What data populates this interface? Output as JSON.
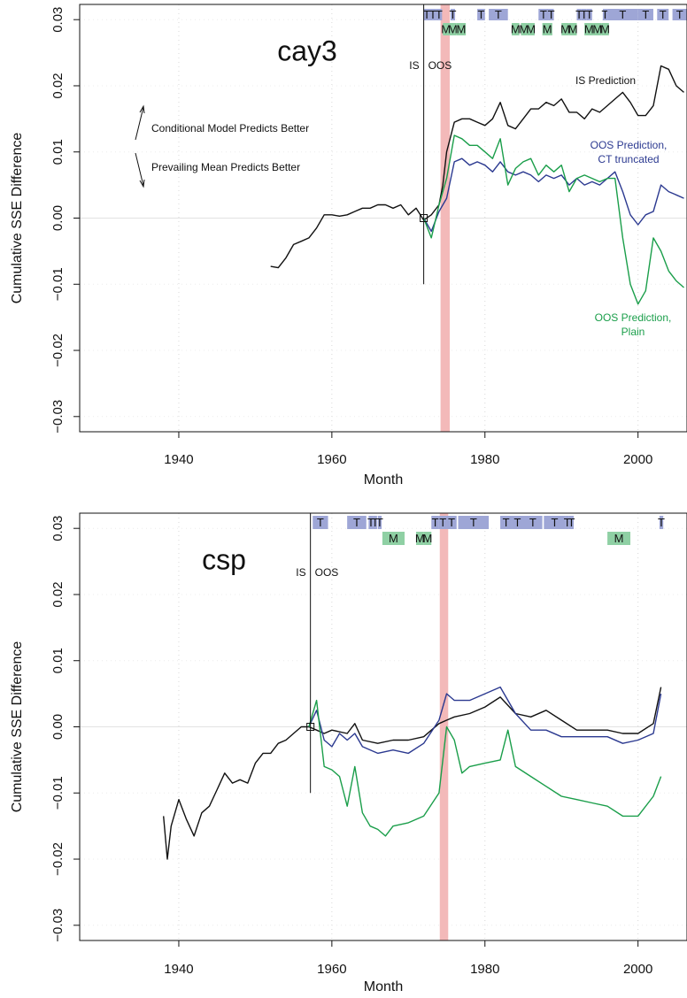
{
  "chart_data": [
    {
      "type": "line",
      "title": "cay3",
      "x_label": "Month",
      "y_label": "Cumulative SSE Difference",
      "xlim": [
        1927.05,
        2006.4
      ],
      "ylim": [
        -0.0323,
        0.0323
      ],
      "xticks": [
        1940,
        1960,
        1980,
        2000
      ],
      "yticks": [
        {
          "value": -0.03,
          "label": "−0.03"
        },
        {
          "value": -0.02,
          "label": "−0.02"
        },
        {
          "value": -0.01,
          "label": "−0.01"
        },
        {
          "value": 0,
          "label": "0.00"
        },
        0.01,
        0.02,
        0.03
      ],
      "grid": true,
      "shade": {
        "start": 1974.2,
        "end": 1975.4,
        "color": "#f3b9b9"
      },
      "split": {
        "x": 1972,
        "y_end": -0.01,
        "left_label": "IS",
        "right_label": "OOS"
      },
      "period_rows": [
        {
          "color": "#9ea6d6",
          "periods": [
            {
              "start": 1972,
              "end": 1972.8,
              "label": "T"
            },
            {
              "start": 1972.8,
              "end": 1973.6,
              "label": "T"
            },
            {
              "start": 1973.6,
              "end": 1974.4,
              "label": "T"
            },
            {
              "start": 1975.5,
              "end": 1976.1,
              "label": "T"
            },
            {
              "start": 1979,
              "end": 1980,
              "label": "T"
            },
            {
              "start": 1980.5,
              "end": 1983,
              "label": "T"
            },
            {
              "start": 1987,
              "end": 1988.3,
              "label": "T"
            },
            {
              "start": 1988.3,
              "end": 1989,
              "label": "T"
            },
            {
              "start": 1992,
              "end": 1992.6,
              "label": "T"
            },
            {
              "start": 1992.6,
              "end": 1993.3,
              "label": "T"
            },
            {
              "start": 1993.3,
              "end": 1994,
              "label": "T"
            },
            {
              "start": 1995.4,
              "end": 1996,
              "label": "T"
            },
            {
              "start": 1996,
              "end": 2000,
              "label": "T"
            },
            {
              "start": 2000,
              "end": 2002,
              "label": "T"
            },
            {
              "start": 2002.5,
              "end": 2004,
              "label": "T"
            },
            {
              "start": 2004.5,
              "end": 2006.4,
              "label": "T"
            }
          ]
        },
        {
          "color": "#8fd0a4",
          "periods": [
            {
              "start": 1974.5,
              "end": 1975.3,
              "label": "M"
            },
            {
              "start": 1975.3,
              "end": 1976.3,
              "label": "M"
            },
            {
              "start": 1976.3,
              "end": 1977.5,
              "label": "M"
            },
            {
              "start": 1983.5,
              "end": 1984.5,
              "label": "M"
            },
            {
              "start": 1984.7,
              "end": 1985.5,
              "label": "M"
            },
            {
              "start": 1985.5,
              "end": 1986.5,
              "label": "M"
            },
            {
              "start": 1987.5,
              "end": 1988.8,
              "label": "M"
            },
            {
              "start": 1990,
              "end": 1991,
              "label": "M"
            },
            {
              "start": 1991,
              "end": 1992,
              "label": "M"
            },
            {
              "start": 1993,
              "end": 1994.2,
              "label": "M"
            },
            {
              "start": 1994.2,
              "end": 1995.2,
              "label": "M"
            },
            {
              "start": 1995.2,
              "end": 1996.2,
              "label": "M"
            }
          ]
        }
      ],
      "annotations": [
        {
          "text": "Conditional Model Predicts Better",
          "color": "#111111"
        },
        {
          "text": "Prevailing Mean Predicts Better",
          "color": "#111111"
        },
        {
          "text": "IS Prediction",
          "color": "#111111"
        },
        {
          "text": "OOS Prediction,",
          "color": "#2b3990"
        },
        {
          "text": "CT truncated",
          "color": "#2b3990"
        },
        {
          "text": "OOS Prediction,",
          "color": "#1a9e4a"
        },
        {
          "text": "Plain",
          "color": "#1a9e4a"
        }
      ],
      "series": [
        {
          "color": "#111111",
          "x": [
            1952,
            1953,
            1954,
            1955,
            1956,
            1957,
            1958,
            1959,
            1960,
            1961,
            1962,
            1963,
            1964,
            1965,
            1966,
            1967,
            1968,
            1969,
            1970,
            1971,
            1972,
            1973,
            1974,
            1974.5,
            1975,
            1976,
            1977,
            1978,
            1979,
            1980,
            1981,
            1982,
            1983,
            1984,
            1985,
            1986,
            1987,
            1988,
            1989,
            1990,
            1991,
            1992,
            1993,
            1994,
            1995,
            1996,
            1997,
            1998,
            1999,
            2000,
            2001,
            2002,
            2003,
            2004,
            2005,
            2006
          ],
          "values": [
            -0.0073,
            -0.0075,
            -0.006,
            -0.004,
            -0.0035,
            -0.003,
            -0.0015,
            0.0005,
            0.0005,
            0.0003,
            0.0005,
            0.001,
            0.0015,
            0.0015,
            0.002,
            0.002,
            0.0015,
            0.002,
            0.0005,
            0.0015,
            -0.0003,
            0.0005,
            0.002,
            0.005,
            0.01,
            0.0145,
            0.015,
            0.015,
            0.0145,
            0.014,
            0.015,
            0.0175,
            0.014,
            0.0135,
            0.015,
            0.0165,
            0.0165,
            0.0175,
            0.017,
            0.018,
            0.016,
            0.016,
            0.015,
            0.0165,
            0.016,
            0.017,
            0.018,
            0.019,
            0.0175,
            0.0155,
            0.0155,
            0.017,
            0.023,
            0.0225,
            0.02,
            0.019
          ]
        },
        {
          "color": "#2b3990",
          "x": [
            1972,
            1973,
            1974,
            1975,
            1976,
            1977,
            1978,
            1979,
            1980,
            1981,
            1982,
            1983,
            1984,
            1985,
            1986,
            1987,
            1988,
            1989,
            1990,
            1991,
            1992,
            1993,
            1994,
            1995,
            1996,
            1997,
            1998,
            1999,
            2000,
            2001,
            2002,
            2003,
            2004,
            2005,
            2006
          ],
          "values": [
            0,
            -0.002,
            0.001,
            0.003,
            0.0085,
            0.009,
            0.008,
            0.0085,
            0.008,
            0.007,
            0.0085,
            0.007,
            0.0065,
            0.007,
            0.0065,
            0.0055,
            0.0065,
            0.006,
            0.0065,
            0.005,
            0.006,
            0.005,
            0.0055,
            0.005,
            0.006,
            0.007,
            0.004,
            0.0005,
            -0.001,
            0.0005,
            0.001,
            0.005,
            0.004,
            0.0035,
            0.003
          ]
        },
        {
          "color": "#1a9e4a",
          "x": [
            1972,
            1973,
            1974,
            1975,
            1976,
            1977,
            1978,
            1979,
            1980,
            1981,
            1982,
            1983,
            1984,
            1985,
            1986,
            1987,
            1988,
            1989,
            1990,
            1991,
            1992,
            1993,
            1994,
            1995,
            1996,
            1997,
            1998,
            1999,
            2000,
            2001,
            2002,
            2003,
            2004,
            2005,
            2006
          ],
          "values": [
            0,
            -0.003,
            0.002,
            0.006,
            0.0125,
            0.012,
            0.011,
            0.011,
            0.01,
            0.009,
            0.012,
            0.005,
            0.0075,
            0.0085,
            0.009,
            0.0065,
            0.008,
            0.007,
            0.008,
            0.004,
            0.006,
            0.0065,
            0.006,
            0.0055,
            0.006,
            0.006,
            -0.003,
            -0.01,
            -0.013,
            -0.011,
            -0.003,
            -0.005,
            -0.008,
            -0.0095,
            -0.0105
          ]
        }
      ]
    },
    {
      "type": "line",
      "title": "csp",
      "x_label": "Month",
      "y_label": "Cumulative SSE Difference",
      "xlim": [
        1927.05,
        2006.4
      ],
      "ylim": [
        -0.0323,
        0.0323
      ],
      "xticks": [
        1940,
        1960,
        1980,
        2000
      ],
      "yticks": [
        {
          "value": -0.03,
          "label": "−0.03"
        },
        {
          "value": -0.02,
          "label": "−0.02"
        },
        {
          "value": -0.01,
          "label": "−0.01"
        },
        {
          "value": 0,
          "label": "0.00"
        },
        0.01,
        0.02,
        0.03
      ],
      "grid": true,
      "shade": {
        "start": 1974.1,
        "end": 1975.2,
        "color": "#f3b9b9"
      },
      "split": {
        "x": 1957.2,
        "y_end": -0.01,
        "left_label": "IS",
        "right_label": "OOS"
      },
      "period_rows": [
        {
          "color": "#9ea6d6",
          "periods": [
            {
              "start": 1957.5,
              "end": 1959.5,
              "label": "T"
            },
            {
              "start": 1962,
              "end": 1964.5,
              "label": "T"
            },
            {
              "start": 1964.8,
              "end": 1965.4,
              "label": "T"
            },
            {
              "start": 1965.4,
              "end": 1965.9,
              "label": "T"
            },
            {
              "start": 1966,
              "end": 1966.5,
              "label": "T"
            },
            {
              "start": 1973,
              "end": 1974,
              "label": "T"
            },
            {
              "start": 1974,
              "end": 1975,
              "label": "T"
            },
            {
              "start": 1975,
              "end": 1976.3,
              "label": "T"
            },
            {
              "start": 1976.5,
              "end": 1980.5,
              "label": "T"
            },
            {
              "start": 1982,
              "end": 1983.5,
              "label": "T"
            },
            {
              "start": 1983.5,
              "end": 1985,
              "label": "T"
            },
            {
              "start": 1985,
              "end": 1987.5,
              "label": "T"
            },
            {
              "start": 1987.7,
              "end": 1990.5,
              "label": "T"
            },
            {
              "start": 1990.5,
              "end": 1991,
              "label": "T"
            },
            {
              "start": 1991,
              "end": 1991.6,
              "label": "T"
            },
            {
              "start": 2002.8,
              "end": 2003.3,
              "label": "T"
            }
          ]
        },
        {
          "color": "#8fd0a4",
          "periods": [
            {
              "start": 1966.6,
              "end": 1969.5,
              "label": "M"
            },
            {
              "start": 1971,
              "end": 1972,
              "label": "M"
            },
            {
              "start": 1972,
              "end": 1973,
              "label": "M"
            },
            {
              "start": 1996,
              "end": 1999,
              "label": "M"
            }
          ]
        }
      ],
      "annotations": [],
      "series": [
        {
          "color": "#111111",
          "x": [
            1938,
            1938.5,
            1939,
            1940,
            1941,
            1942,
            1943,
            1944,
            1945,
            1946,
            1947,
            1948,
            1949,
            1950,
            1951,
            1952,
            1953,
            1954,
            1955,
            1956,
            1957,
            1958,
            1959,
            1960,
            1962,
            1963,
            1964,
            1966,
            1968,
            1970,
            1972,
            1974,
            1975,
            1976,
            1978,
            1980,
            1982,
            1984,
            1986,
            1988,
            1990,
            1992,
            1994,
            1996,
            1998,
            2000,
            2002,
            2003
          ],
          "values": [
            -0.0135,
            -0.02,
            -0.015,
            -0.011,
            -0.014,
            -0.0165,
            -0.013,
            -0.012,
            -0.0095,
            -0.007,
            -0.0085,
            -0.008,
            -0.0085,
            -0.0055,
            -0.004,
            -0.004,
            -0.0025,
            -0.002,
            -0.001,
            0,
            0,
            -0.0005,
            -0.001,
            -0.0005,
            -0.001,
            0.0005,
            -0.002,
            -0.0025,
            -0.002,
            -0.002,
            -0.0015,
            0.0005,
            0.001,
            0.0015,
            0.002,
            0.003,
            0.0045,
            0.002,
            0.0015,
            0.0025,
            0.001,
            -0.0005,
            -0.0005,
            -0.0005,
            -0.001,
            -0.001,
            0.0005,
            0.006
          ]
        },
        {
          "color": "#2b3990",
          "x": [
            1957,
            1958,
            1959,
            1960,
            1961,
            1962,
            1963,
            1964,
            1966,
            1968,
            1970,
            1972,
            1974,
            1975,
            1976,
            1978,
            1980,
            1982,
            1984,
            1986,
            1988,
            1990,
            1992,
            1994,
            1996,
            1998,
            2000,
            2002,
            2003
          ],
          "values": [
            0,
            0.0025,
            -0.002,
            -0.003,
            -0.001,
            -0.002,
            -0.001,
            -0.003,
            -0.004,
            -0.0035,
            -0.004,
            -0.0025,
            0.001,
            0.005,
            0.004,
            0.004,
            0.005,
            0.006,
            0.002,
            -0.0005,
            -0.0005,
            -0.0015,
            -0.0015,
            -0.0015,
            -0.0015,
            -0.0025,
            -0.002,
            -0.001,
            0.005
          ]
        },
        {
          "color": "#1a9e4a",
          "x": [
            1957,
            1958,
            1959,
            1960,
            1961,
            1962,
            1963,
            1964,
            1965,
            1966,
            1967,
            1968,
            1970,
            1972,
            1974,
            1975,
            1976,
            1977,
            1978,
            1980,
            1982,
            1983,
            1984,
            1986,
            1988,
            1990,
            1992,
            1994,
            1996,
            1998,
            2000,
            2002,
            2003
          ],
          "values": [
            0,
            0.004,
            -0.006,
            -0.0065,
            -0.0075,
            -0.012,
            -0.006,
            -0.013,
            -0.015,
            -0.0155,
            -0.0165,
            -0.015,
            -0.0145,
            -0.0135,
            -0.01,
            0,
            -0.002,
            -0.007,
            -0.006,
            -0.0055,
            -0.005,
            -0.0005,
            -0.006,
            -0.0075,
            -0.009,
            -0.0105,
            -0.011,
            -0.0115,
            -0.012,
            -0.0135,
            -0.0135,
            -0.0105,
            -0.0075
          ]
        }
      ]
    }
  ]
}
